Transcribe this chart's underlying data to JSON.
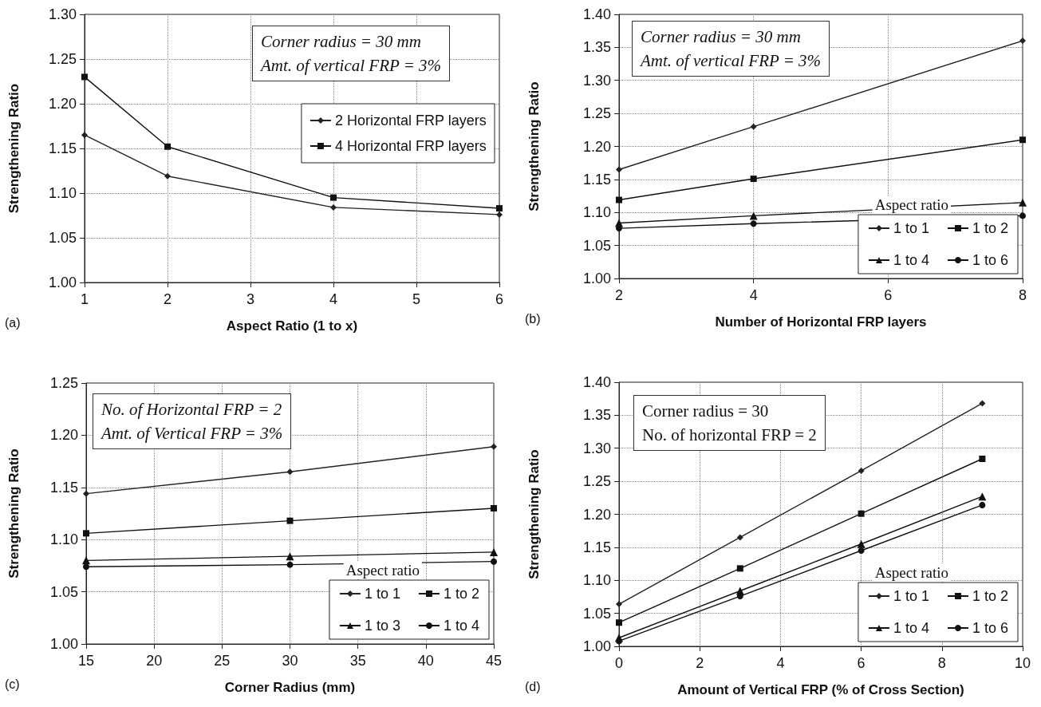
{
  "chart_data": [
    {
      "type": "line",
      "xlabel": "Aspect Ratio (1 to x)",
      "ylabel": "Strengthening Ratio",
      "annotations": [
        "(a)",
        "Corner radius = 30 mm",
        "Amt. of vertical FRP = 3%"
      ],
      "x": [
        1,
        2,
        4,
        6
      ],
      "series": [
        {
          "name": "2 Horizontal FRP layers",
          "color": "#222222",
          "marker": "diamond",
          "values": [
            1.165,
            1.119,
            1.084,
            1.076
          ]
        },
        {
          "name": "4 Horizontal FRP layers",
          "color": "#111111",
          "marker": "square",
          "values": [
            1.23,
            1.152,
            1.095,
            1.083
          ]
        }
      ],
      "xlim": [
        1,
        6
      ],
      "xticks": [
        1,
        2,
        3,
        4,
        5,
        6
      ],
      "ylim": [
        1.0,
        1.3
      ],
      "yticks": [
        {
          "value": 1.0,
          "label": "1.00"
        },
        {
          "value": 1.05,
          "label": "1.05"
        },
        {
          "value": 1.1,
          "label": "1.10"
        },
        {
          "value": 1.15,
          "label": "1.15"
        },
        {
          "value": 1.2,
          "label": "1.20"
        },
        {
          "value": 1.25,
          "label": "1.25"
        },
        {
          "value": 1.3,
          "label": "1.30"
        }
      ],
      "grid": true,
      "legend": "top right",
      "line_style": "solid"
    },
    {
      "type": "line",
      "xlabel": "Number of Horizontal FRP layers",
      "ylabel": "Strengthening Ratio",
      "legend_title": "Aspect ratio",
      "annotations": [
        "(b)",
        "Corner radius = 30 mm",
        "Amt. of vertical FRP = 3%"
      ],
      "x": [
        2,
        4,
        8
      ],
      "series": [
        {
          "name": "1 to 1",
          "color": "#222222",
          "marker": "diamond",
          "values": [
            1.165,
            1.23,
            1.36
          ]
        },
        {
          "name": "1 to 2",
          "color": "#111111",
          "marker": "square",
          "values": [
            1.119,
            1.151,
            1.21
          ]
        },
        {
          "name": "1 to 4",
          "color": "#111111",
          "marker": "triangle",
          "values": [
            1.084,
            1.095,
            1.115
          ]
        },
        {
          "name": "1 to 6",
          "color": "#111111",
          "marker": "circle",
          "values": [
            1.076,
            1.083,
            1.095
          ]
        }
      ],
      "xlim": [
        2,
        8
      ],
      "xticks": [
        2,
        4,
        6,
        8
      ],
      "ylim": [
        1.0,
        1.4
      ],
      "yticks": [
        {
          "value": 1.0,
          "label": "1.00"
        },
        {
          "value": 1.05,
          "label": "1.05"
        },
        {
          "value": 1.1,
          "label": "1.10"
        },
        {
          "value": 1.15,
          "label": "1.15"
        },
        {
          "value": 1.2,
          "label": "1.20"
        },
        {
          "value": 1.25,
          "label": "1.25"
        },
        {
          "value": 1.3,
          "label": "1.30"
        },
        {
          "value": 1.35,
          "label": "1.35"
        },
        {
          "value": 1.4,
          "label": "1.40"
        }
      ],
      "grid": true,
      "legend": "bottom right",
      "line_style": "solid"
    },
    {
      "type": "line",
      "xlabel": "Corner Radius (mm)",
      "ylabel": "Strengthening Ratio",
      "legend_title": "Aspect ratio",
      "annotations": [
        "(c)",
        "No. of Horizontal FRP = 2",
        "Amt. of Vertical FRP = 3%"
      ],
      "x": [
        15,
        30,
        45
      ],
      "series": [
        {
          "name": "1 to 1",
          "color": "#222222",
          "marker": "diamond",
          "values": [
            1.144,
            1.165,
            1.189
          ]
        },
        {
          "name": "1 to 2",
          "color": "#111111",
          "marker": "square",
          "values": [
            1.106,
            1.118,
            1.13
          ]
        },
        {
          "name": "1 to 3",
          "color": "#111111",
          "marker": "triangle",
          "values": [
            1.08,
            1.084,
            1.088
          ]
        },
        {
          "name": "1 to 4",
          "color": "#111111",
          "marker": "circle",
          "values": [
            1.074,
            1.076,
            1.079
          ]
        }
      ],
      "xlim": [
        15,
        45
      ],
      "xticks": [
        15,
        20,
        25,
        30,
        35,
        40,
        45
      ],
      "ylim": [
        1.0,
        1.25
      ],
      "yticks": [
        {
          "value": 1.0,
          "label": "1.00"
        },
        {
          "value": 1.05,
          "label": "1.05"
        },
        {
          "value": 1.1,
          "label": "1.10"
        },
        {
          "value": 1.15,
          "label": "1.15"
        },
        {
          "value": 1.2,
          "label": "1.20"
        },
        {
          "value": 1.25,
          "label": "1.25"
        }
      ],
      "grid": true,
      "legend": "bottom right",
      "line_style": "solid"
    },
    {
      "type": "line",
      "xlabel": "Amount of Vertical FRP (% of Cross Section)",
      "ylabel": "Strengthening Ratio",
      "legend_title": "Aspect ratio",
      "annotations": [
        "(d)",
        "Corner radius = 30",
        "No. of horizontal FRP = 2"
      ],
      "x": [
        0,
        3,
        6,
        9
      ],
      "series": [
        {
          "name": "1 to 1",
          "color": "#222222",
          "marker": "diamond",
          "values": [
            1.064,
            1.165,
            1.266,
            1.368
          ]
        },
        {
          "name": "1 to 2",
          "color": "#111111",
          "marker": "square",
          "values": [
            1.036,
            1.118,
            1.201,
            1.284
          ]
        },
        {
          "name": "1 to 4",
          "color": "#111111",
          "marker": "triangle",
          "values": [
            1.013,
            1.084,
            1.155,
            1.227
          ]
        },
        {
          "name": "1 to 6",
          "color": "#111111",
          "marker": "circle",
          "values": [
            1.008,
            1.076,
            1.145,
            1.214
          ]
        }
      ],
      "xlim": [
        0,
        10
      ],
      "xticks": [
        0,
        2,
        4,
        6,
        8,
        10
      ],
      "ylim": [
        1.0,
        1.4
      ],
      "yticks": [
        {
          "value": 1.0,
          "label": "1.00"
        },
        {
          "value": 1.05,
          "label": "1.05"
        },
        {
          "value": 1.1,
          "label": "1.10"
        },
        {
          "value": 1.15,
          "label": "1.15"
        },
        {
          "value": 1.2,
          "label": "1.20"
        },
        {
          "value": 1.25,
          "label": "1.25"
        },
        {
          "value": 1.3,
          "label": "1.30"
        },
        {
          "value": 1.35,
          "label": "1.35"
        },
        {
          "value": 1.4,
          "label": "1.40"
        }
      ],
      "grid": true,
      "legend": "bottom right",
      "line_style": "solid"
    }
  ]
}
